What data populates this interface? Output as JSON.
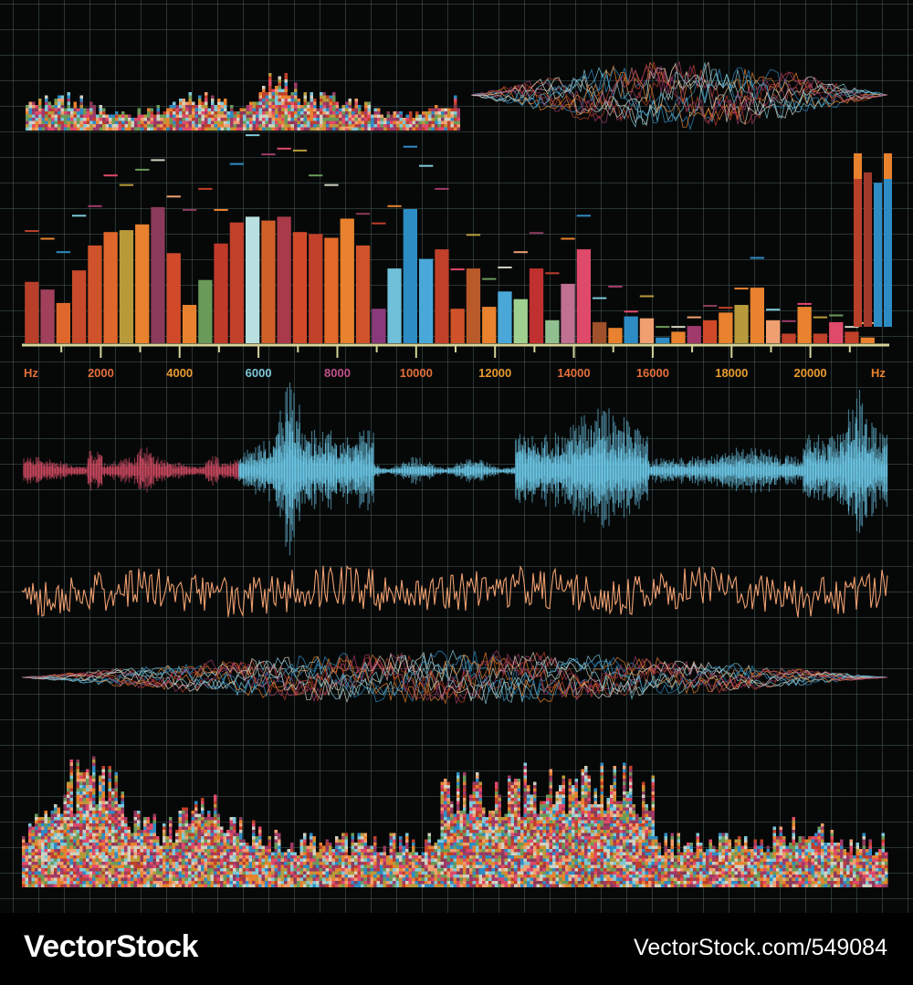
{
  "chart_data": [
    {
      "type": "bar",
      "title": "",
      "xlabel": "Hz",
      "ylabel": "",
      "x_unit_left": "Hz",
      "x_unit_right": "Hz",
      "xlim": [
        0,
        22000
      ],
      "ylim": [
        0,
        100
      ],
      "tick_labels": [
        {
          "value": 2000,
          "label": "2000",
          "color": "#e36f3a"
        },
        {
          "value": 4000,
          "label": "4000",
          "color": "#e89a2e"
        },
        {
          "value": 6000,
          "label": "6000",
          "color": "#7ec8d8"
        },
        {
          "value": 8000,
          "label": "8000",
          "color": "#c0508a"
        },
        {
          "value": 10000,
          "label": "10000",
          "color": "#e36f3a"
        },
        {
          "value": 12000,
          "label": "12000",
          "color": "#e89a2e"
        },
        {
          "value": 14000,
          "label": "14000",
          "color": "#e36f3a"
        },
        {
          "value": 16000,
          "label": "16000",
          "color": "#e36f3a"
        },
        {
          "value": 18000,
          "label": "18000",
          "color": "#e89a2e"
        },
        {
          "value": 20000,
          "label": "20000",
          "color": "#e89a2e"
        }
      ],
      "bars": [
        {
          "x": 250,
          "value": 32,
          "peak": 59,
          "color": "#b8402a"
        },
        {
          "x": 650,
          "value": 28,
          "peak": 55,
          "color": "#a0405a"
        },
        {
          "x": 1050,
          "value": 21,
          "peak": 48,
          "color": "#e0672c"
        },
        {
          "x": 1450,
          "value": 38,
          "peak": 67,
          "color": "#c74a2a"
        },
        {
          "x": 1850,
          "value": 51,
          "peak": 72,
          "color": "#d0522a"
        },
        {
          "x": 2250,
          "value": 58,
          "peak": 88,
          "color": "#e0672c"
        },
        {
          "x": 2650,
          "value": 59,
          "peak": 83,
          "color": "#b89a3a"
        },
        {
          "x": 3050,
          "value": 62,
          "peak": 91,
          "color": "#e8822e"
        },
        {
          "x": 3450,
          "value": 71,
          "peak": 96,
          "color": "#8a3a5a"
        },
        {
          "x": 3850,
          "value": 47,
          "peak": 77,
          "color": "#d04a2a"
        },
        {
          "x": 4250,
          "value": 20,
          "peak": 70,
          "color": "#e8822e"
        },
        {
          "x": 4650,
          "value": 33,
          "peak": 81,
          "color": "#6a9a5a"
        },
        {
          "x": 5050,
          "value": 52,
          "peak": 70,
          "color": "#c03a2a"
        },
        {
          "x": 5450,
          "value": 63,
          "peak": 94,
          "color": "#c0402a"
        },
        {
          "x": 5850,
          "value": 66,
          "peak": 109,
          "color": "#b8e0e0"
        },
        {
          "x": 6250,
          "value": 64,
          "peak": 99,
          "color": "#d0602a"
        },
        {
          "x": 6650,
          "value": 66,
          "peak": 102,
          "color": "#a83a4a"
        },
        {
          "x": 7050,
          "value": 58,
          "peak": 101,
          "color": "#d04a2a"
        },
        {
          "x": 7450,
          "value": 57,
          "peak": 88,
          "color": "#c0402a"
        },
        {
          "x": 7850,
          "value": 55,
          "peak": 83,
          "color": "#e36a2a"
        },
        {
          "x": 8250,
          "value": 65,
          "peak": 113,
          "color": "#e8822e"
        },
        {
          "x": 8650,
          "value": 51,
          "peak": 68,
          "color": "#d0522a"
        },
        {
          "x": 9050,
          "value": 18,
          "peak": 63,
          "color": "#8a3a7a"
        },
        {
          "x": 9450,
          "value": 39,
          "peak": 72,
          "color": "#6fc0d8"
        },
        {
          "x": 9850,
          "value": 70,
          "peak": 103,
          "color": "#2e8cc4"
        },
        {
          "x": 10250,
          "value": 44,
          "peak": 93,
          "color": "#4aa8d8"
        },
        {
          "x": 10650,
          "value": 49,
          "peak": 81,
          "color": "#c0402a"
        },
        {
          "x": 11050,
          "value": 18,
          "peak": 39,
          "color": "#d0522a"
        },
        {
          "x": 11450,
          "value": 39,
          "peak": 57,
          "color": "#b85a2a"
        },
        {
          "x": 11850,
          "value": 19,
          "peak": 34,
          "color": "#e8822e"
        },
        {
          "x": 12250,
          "value": 27,
          "peak": 40,
          "color": "#4aa8d8"
        },
        {
          "x": 12650,
          "value": 23,
          "peak": 48,
          "color": "#a0d090"
        },
        {
          "x": 13050,
          "value": 39,
          "peak": 58,
          "color": "#c03030"
        },
        {
          "x": 13450,
          "value": 12,
          "peak": 37,
          "color": "#90c090"
        },
        {
          "x": 13850,
          "value": 31,
          "peak": 55,
          "color": "#c07090"
        },
        {
          "x": 14250,
          "value": 49,
          "peak": 67,
          "color": "#e04a6a"
        },
        {
          "x": 14650,
          "value": 11,
          "peak": 24,
          "color": "#a0502a"
        },
        {
          "x": 15050,
          "value": 8,
          "peak": 30,
          "color": "#e8822e"
        },
        {
          "x": 15450,
          "value": 14,
          "peak": 17,
          "color": "#2e8cc4"
        },
        {
          "x": 15850,
          "value": 13,
          "peak": 25,
          "color": "#f0a070"
        },
        {
          "x": 16250,
          "value": 3,
          "peak": 9,
          "color": "#2e8cc4"
        },
        {
          "x": 16650,
          "value": 6,
          "peak": 9,
          "color": "#e8822e"
        },
        {
          "x": 17050,
          "value": 9,
          "peak": 14,
          "color": "#a03a6a"
        },
        {
          "x": 17450,
          "value": 12,
          "peak": 20,
          "color": "#d04a2a"
        },
        {
          "x": 17850,
          "value": 16,
          "peak": 19,
          "color": "#e8822e"
        },
        {
          "x": 18250,
          "value": 20,
          "peak": 29,
          "color": "#b89a3a"
        },
        {
          "x": 18650,
          "value": 29,
          "peak": 45,
          "color": "#e8822e"
        },
        {
          "x": 19050,
          "value": 12,
          "peak": 18,
          "color": "#f0a070"
        },
        {
          "x": 19450,
          "value": 5,
          "peak": 12,
          "color": "#c0402a"
        },
        {
          "x": 19850,
          "value": 19,
          "peak": 21,
          "color": "#e8822e"
        },
        {
          "x": 20250,
          "value": 5,
          "peak": 14,
          "color": "#c0402a"
        },
        {
          "x": 20650,
          "value": 11,
          "peak": 15,
          "color": "#e04a6a"
        },
        {
          "x": 21050,
          "value": 6,
          "peak": 9,
          "color": "#c0402a"
        },
        {
          "x": 21450,
          "value": 3,
          "peak": 11,
          "color": "#e8822e"
        }
      ]
    },
    {
      "type": "bar",
      "title": "",
      "bars": [
        {
          "value": 100,
          "color": "#b8402a",
          "cap": "#e8822e"
        },
        {
          "value": 89,
          "color": "#a03a2a",
          "cap": "#a03a2a"
        },
        {
          "value": 83,
          "color": "#2e8cc4",
          "cap": "#2e8cc4"
        },
        {
          "value": 100,
          "color": "#2e8cc4",
          "cap": "#e8822e"
        }
      ]
    }
  ],
  "footer": {
    "brand": "VectorStock",
    "image_id": "VectorStock.com/549084"
  }
}
